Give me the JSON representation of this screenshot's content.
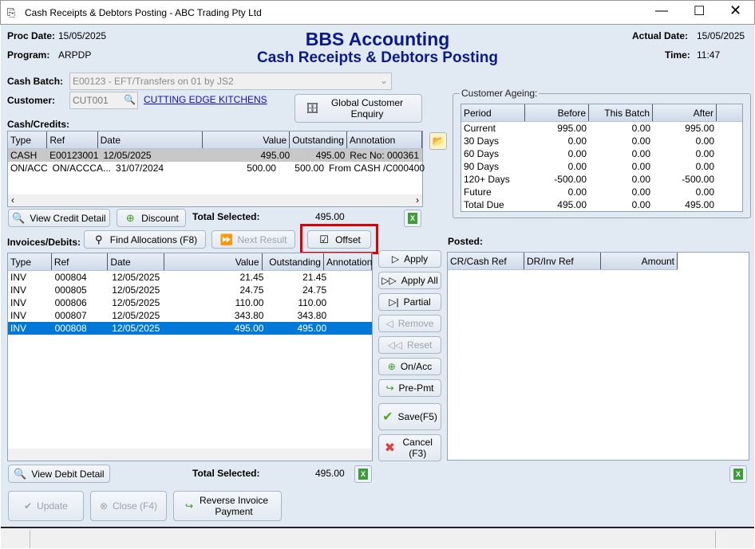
{
  "window": {
    "title": "Cash Receipts & Debtors Posting - ABC Trading Pty Ltd"
  },
  "header": {
    "proc_date_label": "Proc Date:",
    "proc_date": "15/05/2025",
    "program_label": "Program:",
    "program": "ARPDP",
    "app_title": "BBS Accounting",
    "subtitle": "Cash Receipts & Debtors Posting",
    "actual_date_label": "Actual Date:",
    "actual_date": "15/05/2025",
    "time_label": "Time:",
    "time": "11:47"
  },
  "batch": {
    "label": "Cash Batch:",
    "value": "E00123 - EFT/Transfers on 01 by JS2"
  },
  "customer": {
    "label": "Customer:",
    "code": "CUT001",
    "name": "CUTTING EDGE KITCHENS",
    "global_enquiry": "Global Customer Enquiry"
  },
  "credits": {
    "label": "Cash/Credits:",
    "columns": [
      "Type",
      "Ref",
      "Date",
      "Value",
      "Outstanding",
      "Annotation"
    ],
    "rows": [
      [
        "CASH",
        "E00123001",
        "12/05/2025",
        "495.00",
        "495.00",
        "Rec No: 000361"
      ],
      [
        "ON/ACC",
        "ON/ACCCA...",
        "31/07/2024",
        "500.00",
        "500.00",
        "From CASH  /C000400"
      ]
    ],
    "view_detail": "View Credit Detail",
    "discount": "Discount",
    "total_label": "Total Selected:",
    "total": "495.00"
  },
  "ageing": {
    "label": "Customer Ageing:",
    "columns": [
      "Period",
      "Before",
      "This Batch",
      "After"
    ],
    "rows": [
      [
        "Current",
        "995.00",
        "0.00",
        "995.00"
      ],
      [
        "30 Days",
        "0.00",
        "0.00",
        "0.00"
      ],
      [
        "60 Days",
        "0.00",
        "0.00",
        "0.00"
      ],
      [
        "90 Days",
        "0.00",
        "0.00",
        "0.00"
      ],
      [
        "120+ Days",
        "-500.00",
        "0.00",
        "-500.00"
      ],
      [
        "Future",
        "0.00",
        "0.00",
        "0.00"
      ],
      [
        "Total Due",
        "495.00",
        "0.00",
        "495.00"
      ]
    ]
  },
  "invoices": {
    "label": "Invoices/Debits:",
    "find": "Find Allocations (F8)",
    "next": "Next Result",
    "offset": "Offset",
    "columns": [
      "Type",
      "Ref",
      "Date",
      "Value",
      "Outstanding",
      "Annotation"
    ],
    "rows": [
      [
        "INV",
        "000804",
        "12/05/2025",
        "21.45",
        "21.45",
        ""
      ],
      [
        "INV",
        "000805",
        "12/05/2025",
        "24.75",
        "24.75",
        ""
      ],
      [
        "INV",
        "000806",
        "12/05/2025",
        "110.00",
        "110.00",
        ""
      ],
      [
        "INV",
        "000807",
        "12/05/2025",
        "343.80",
        "343.80",
        ""
      ],
      [
        "INV",
        "000808",
        "12/05/2025",
        "495.00",
        "495.00",
        ""
      ]
    ],
    "selected_row": 4,
    "view_detail": "View Debit Detail",
    "total_label": "Total Selected:",
    "total": "495.00"
  },
  "actions": {
    "apply": "Apply",
    "apply_all": "Apply All",
    "partial": "Partial",
    "remove": "Remove",
    "reset": "Reset",
    "onacc": "On/Acc",
    "prepmt": "Pre-Pmt",
    "save": "Save(F5)",
    "cancel": "Cancel (F3)"
  },
  "posted": {
    "label": "Posted:",
    "columns": [
      "CR/Cash Ref",
      "DR/Inv Ref",
      "Amount"
    ]
  },
  "footer": {
    "update": "Update",
    "close": "Close (F4)",
    "reverse": "Reverse Invoice Payment"
  },
  "colors": {
    "title_blue": "#0a1a8c",
    "selection": "#0078d7",
    "highlight_box": "#e00000"
  }
}
